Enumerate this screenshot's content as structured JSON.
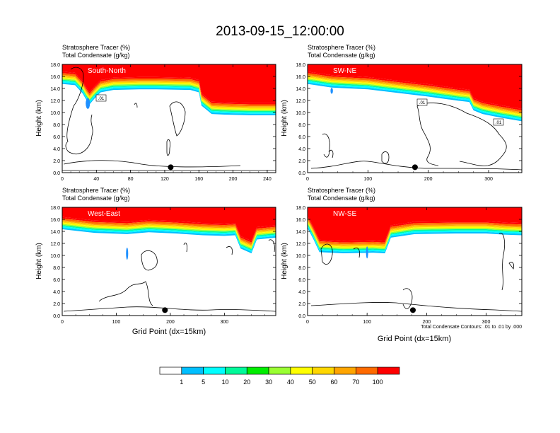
{
  "figure": {
    "title": "2013-09-15_12:00:00",
    "xlabel": "Grid Point (dx=15km)",
    "ylabel": "Height (km)",
    "contour_note": "Total Condensate Contours: .01 to .01 by .000",
    "field_label": "Stratosphere Tracer   (%)",
    "contour_label": "Total Condensate   (g/kg)"
  },
  "colorbar": {
    "levels": [
      "1",
      "5",
      "10",
      "20",
      "30",
      "40",
      "50",
      "60",
      "70",
      "100"
    ],
    "colors": [
      "#ffffff",
      "#1e90ff",
      "#00bfff",
      "#00ffff",
      "#00fa9a",
      "#00ee00",
      "#9aff32",
      "#ffff00",
      "#ffd700",
      "#ffa500",
      "#ff6a00",
      "#ff0000"
    ]
  },
  "chart_data": [
    {
      "type": "heatmap",
      "name": "South-North",
      "title": "South-North",
      "xlim": [
        0,
        250
      ],
      "xticks": [
        0,
        40,
        80,
        120,
        160,
        200,
        240
      ],
      "ylim": [
        0,
        18
      ],
      "yticks": [
        0,
        2,
        4,
        6,
        8,
        10,
        12,
        14,
        16,
        18
      ],
      "marker_x": 127,
      "contour_labels": [
        ".01"
      ],
      "tropopause": [
        [
          0,
          15.6
        ],
        [
          15,
          15.4
        ],
        [
          24,
          14
        ],
        [
          28,
          13
        ],
        [
          32,
          12.2
        ],
        [
          38,
          13.2
        ],
        [
          45,
          14.2
        ],
        [
          60,
          14.6
        ],
        [
          90,
          14.7
        ],
        [
          110,
          14.7
        ],
        [
          150,
          14.6
        ],
        [
          160,
          14.2
        ],
        [
          163,
          12
        ],
        [
          175,
          10.6
        ],
        [
          190,
          10.5
        ],
        [
          220,
          10.4
        ],
        [
          250,
          10.4
        ]
      ],
      "blue_blobs": [
        [
          30,
          11.5,
          2.5,
          0.9
        ]
      ]
    },
    {
      "type": "heatmap",
      "name": "SW-NE",
      "title": "SW-NE",
      "xlim": [
        0,
        355
      ],
      "xticks": [
        0,
        100,
        200,
        300
      ],
      "ylim": [
        0,
        18
      ],
      "yticks": [
        0,
        2,
        4,
        6,
        8,
        10,
        12,
        14,
        16,
        18
      ],
      "marker_x": 178,
      "contour_labels": [
        ".01",
        ".01"
      ],
      "tropopause": [
        [
          0,
          15.6
        ],
        [
          40,
          15
        ],
        [
          100,
          14.7
        ],
        [
          150,
          14.1
        ],
        [
          200,
          13.5
        ],
        [
          250,
          12.8
        ],
        [
          268,
          12.6
        ],
        [
          275,
          11.2
        ],
        [
          290,
          10.6
        ],
        [
          320,
          10
        ],
        [
          355,
          9.4
        ]
      ],
      "blue_blobs": [
        [
          40,
          13.6,
          2,
          0.5
        ]
      ]
    },
    {
      "type": "heatmap",
      "name": "West-East",
      "title": "West-East",
      "xlim": [
        0,
        395
      ],
      "xticks": [
        0,
        100,
        200,
        300
      ],
      "ylim": [
        0,
        18
      ],
      "yticks": [
        0,
        2,
        4,
        6,
        8,
        10,
        12,
        14,
        16,
        18
      ],
      "marker_x": 190,
      "contour_labels": [],
      "tropopause": [
        [
          0,
          15.2
        ],
        [
          60,
          14.6
        ],
        [
          120,
          14.4
        ],
        [
          160,
          14.7
        ],
        [
          210,
          14.5
        ],
        [
          260,
          14.2
        ],
        [
          300,
          14.1
        ],
        [
          320,
          14.2
        ],
        [
          330,
          12
        ],
        [
          350,
          11.2
        ],
        [
          360,
          13.5
        ],
        [
          395,
          13.8
        ]
      ],
      "blue_blobs": [
        [
          120,
          10.3,
          2,
          1
        ]
      ]
    },
    {
      "type": "heatmap",
      "name": "NW-SE",
      "title": "NW-SE",
      "xlim": [
        0,
        360
      ],
      "xticks": [
        0,
        100,
        200,
        300
      ],
      "ylim": [
        0,
        18
      ],
      "yticks": [
        0,
        2,
        4,
        6,
        8,
        10,
        12,
        14,
        16,
        18
      ],
      "marker_x": 177,
      "contour_labels": [],
      "tropopause": [
        [
          0,
          15.4
        ],
        [
          10,
          13.5
        ],
        [
          20,
          11.4
        ],
        [
          60,
          11.2
        ],
        [
          110,
          11.3
        ],
        [
          130,
          11.2
        ],
        [
          140,
          13.8
        ],
        [
          180,
          14.4
        ],
        [
          250,
          14.5
        ],
        [
          300,
          14.5
        ],
        [
          330,
          14.3
        ],
        [
          360,
          14.2
        ]
      ],
      "blue_blobs": [
        [
          100,
          10.5,
          1.8,
          1
        ]
      ]
    }
  ]
}
